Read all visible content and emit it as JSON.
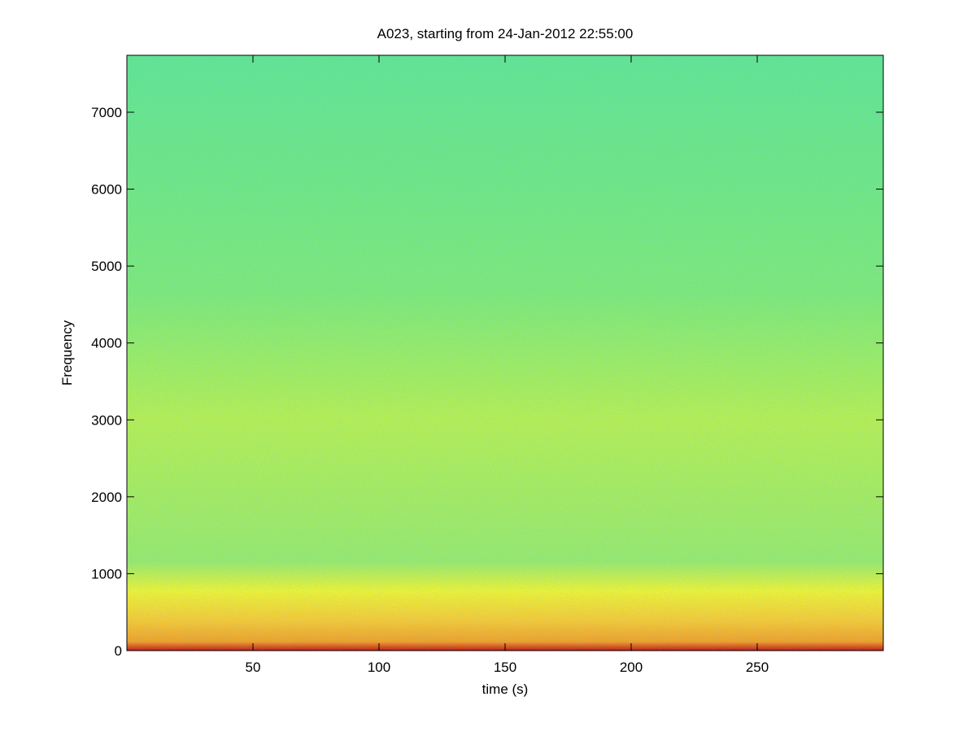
{
  "chart_data": {
    "type": "spectrogram",
    "title": "A023, starting from 24-Jan-2012 22:55:00",
    "x_label": "time (s)",
    "y_label": "Frequency",
    "xlim": [
      0,
      300
    ],
    "xticks": [
      50,
      100,
      150,
      200,
      250
    ],
    "ylim": [
      0,
      7740
    ],
    "yticks": [
      0,
      1000,
      2000,
      3000,
      4000,
      5000,
      6000,
      7000
    ]
  }
}
